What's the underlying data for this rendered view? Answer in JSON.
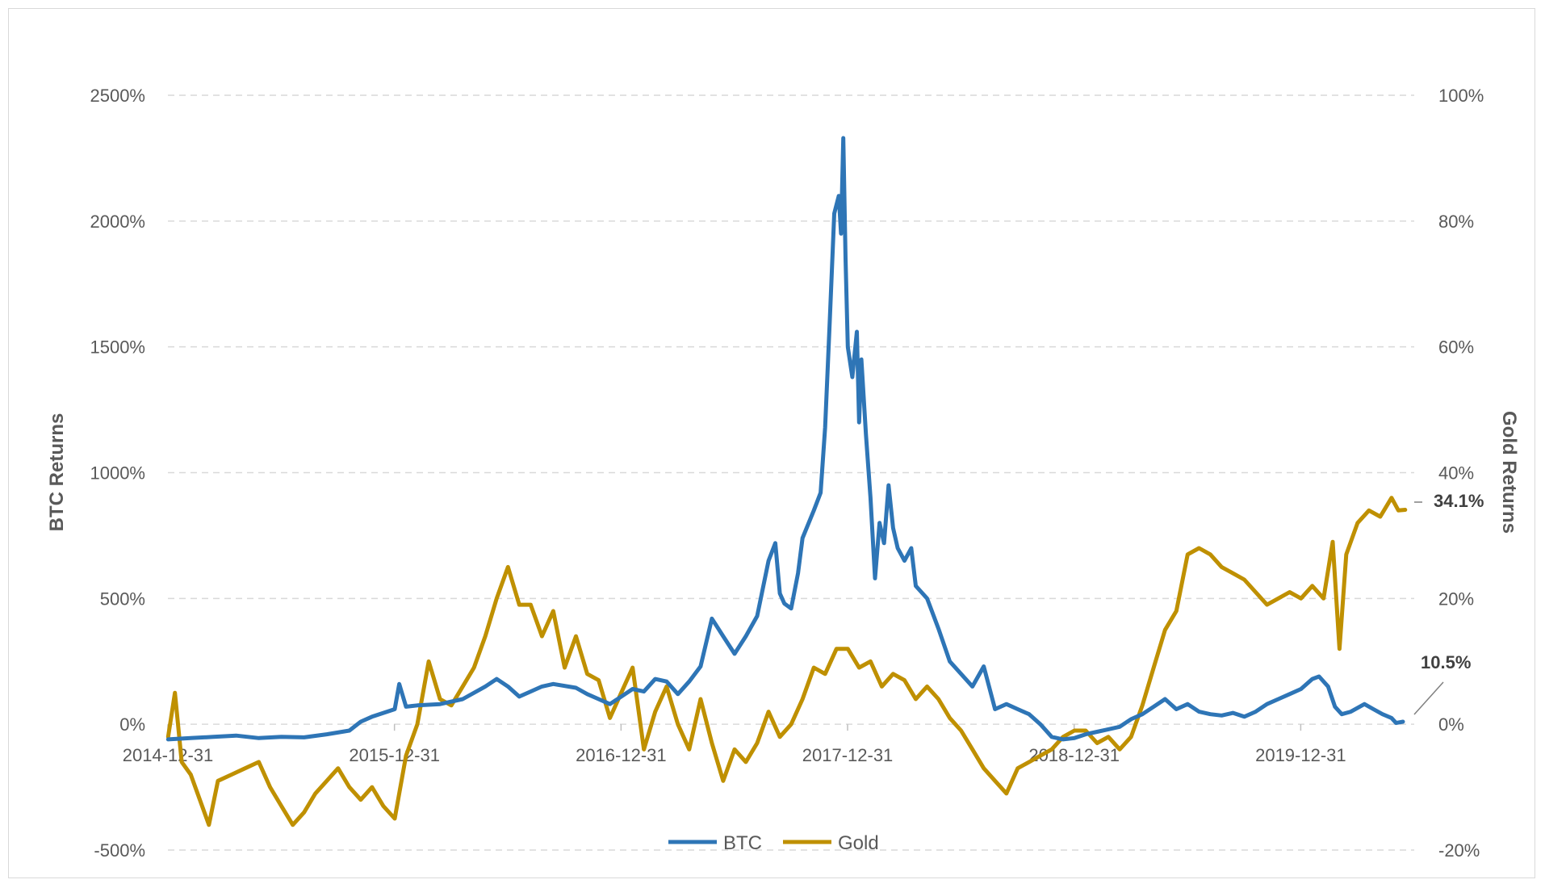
{
  "chart_data": {
    "type": "line",
    "title": "",
    "xlabel": "",
    "y_left": {
      "label": "BTC Returns",
      "ticks": [
        "2500%",
        "2000%",
        "1500%",
        "1000%",
        "500%",
        "0%",
        "-500%"
      ],
      "tick_values": [
        2500,
        2000,
        1500,
        1000,
        500,
        0,
        -500
      ],
      "range": [
        -500,
        2500
      ]
    },
    "y_right": {
      "label": "Gold Returns",
      "ticks": [
        "100%",
        "80%",
        "60%",
        "40%",
        "20%",
        "0%",
        "-20%"
      ],
      "tick_values": [
        100,
        80,
        60,
        40,
        20,
        0,
        -20
      ],
      "range": [
        -20,
        100
      ]
    },
    "x_ticks": [
      {
        "label": "2014-12-31",
        "value": 2014.999
      },
      {
        "label": "2015-12-31",
        "value": 2015.999
      },
      {
        "label": "2016-12-31",
        "value": 2016.999
      },
      {
        "label": "2017-12-31",
        "value": 2017.999
      },
      {
        "label": "2018-12-31",
        "value": 2018.999
      },
      {
        "label": "2019-12-31",
        "value": 2019.999
      }
    ],
    "x_range": [
      2014.999,
      2020.5
    ],
    "grid": "horizontal dashed",
    "legend_position": "bottom",
    "series": [
      {
        "name": "BTC",
        "axis": "left",
        "color": "#2e75b6",
        "points": [
          [
            2015.0,
            -60
          ],
          [
            2015.1,
            -55
          ],
          [
            2015.2,
            -50
          ],
          [
            2015.3,
            -45
          ],
          [
            2015.4,
            -55
          ],
          [
            2015.5,
            -50
          ],
          [
            2015.6,
            -52
          ],
          [
            2015.7,
            -40
          ],
          [
            2015.8,
            -25
          ],
          [
            2015.85,
            10
          ],
          [
            2015.9,
            30
          ],
          [
            2016.0,
            60
          ],
          [
            2016.02,
            160
          ],
          [
            2016.05,
            70
          ],
          [
            2016.1,
            75
          ],
          [
            2016.2,
            80
          ],
          [
            2016.3,
            100
          ],
          [
            2016.4,
            150
          ],
          [
            2016.45,
            180
          ],
          [
            2016.5,
            150
          ],
          [
            2016.55,
            110
          ],
          [
            2016.6,
            130
          ],
          [
            2016.65,
            150
          ],
          [
            2016.7,
            160
          ],
          [
            2016.8,
            145
          ],
          [
            2016.85,
            120
          ],
          [
            2016.9,
            100
          ],
          [
            2016.95,
            80
          ],
          [
            2017.0,
            110
          ],
          [
            2017.05,
            140
          ],
          [
            2017.1,
            130
          ],
          [
            2017.15,
            180
          ],
          [
            2017.2,
            170
          ],
          [
            2017.25,
            120
          ],
          [
            2017.3,
            170
          ],
          [
            2017.35,
            230
          ],
          [
            2017.4,
            420
          ],
          [
            2017.45,
            350
          ],
          [
            2017.5,
            280
          ],
          [
            2017.55,
            350
          ],
          [
            2017.6,
            430
          ],
          [
            2017.65,
            650
          ],
          [
            2017.68,
            720
          ],
          [
            2017.7,
            520
          ],
          [
            2017.72,
            480
          ],
          [
            2017.75,
            460
          ],
          [
            2017.78,
            600
          ],
          [
            2017.8,
            740
          ],
          [
            2017.85,
            850
          ],
          [
            2017.88,
            920
          ],
          [
            2017.9,
            1180
          ],
          [
            2017.92,
            1600
          ],
          [
            2017.94,
            2030
          ],
          [
            2017.96,
            2100
          ],
          [
            2017.97,
            1950
          ],
          [
            2017.98,
            2330
          ],
          [
            2017.99,
            1850
          ],
          [
            2018.0,
            1500
          ],
          [
            2018.02,
            1380
          ],
          [
            2018.04,
            1560
          ],
          [
            2018.05,
            1200
          ],
          [
            2018.06,
            1450
          ],
          [
            2018.08,
            1150
          ],
          [
            2018.1,
            900
          ],
          [
            2018.12,
            580
          ],
          [
            2018.14,
            800
          ],
          [
            2018.16,
            720
          ],
          [
            2018.18,
            950
          ],
          [
            2018.2,
            780
          ],
          [
            2018.22,
            700
          ],
          [
            2018.25,
            650
          ],
          [
            2018.28,
            700
          ],
          [
            2018.3,
            550
          ],
          [
            2018.35,
            500
          ],
          [
            2018.4,
            380
          ],
          [
            2018.45,
            250
          ],
          [
            2018.5,
            200
          ],
          [
            2018.55,
            150
          ],
          [
            2018.6,
            230
          ],
          [
            2018.65,
            60
          ],
          [
            2018.7,
            80
          ],
          [
            2018.75,
            60
          ],
          [
            2018.8,
            40
          ],
          [
            2018.85,
            0
          ],
          [
            2018.9,
            -50
          ],
          [
            2018.95,
            -60
          ],
          [
            2019.0,
            -55
          ],
          [
            2019.05,
            -40
          ],
          [
            2019.1,
            -30
          ],
          [
            2019.15,
            -20
          ],
          [
            2019.2,
            -10
          ],
          [
            2019.25,
            20
          ],
          [
            2019.3,
            40
          ],
          [
            2019.35,
            70
          ],
          [
            2019.4,
            100
          ],
          [
            2019.45,
            60
          ],
          [
            2019.5,
            80
          ],
          [
            2019.55,
            50
          ],
          [
            2019.6,
            40
          ],
          [
            2019.65,
            35
          ],
          [
            2019.7,
            45
          ],
          [
            2019.75,
            30
          ],
          [
            2019.8,
            50
          ],
          [
            2019.85,
            80
          ],
          [
            2019.9,
            100
          ],
          [
            2019.95,
            120
          ],
          [
            2020.0,
            140
          ],
          [
            2020.05,
            180
          ],
          [
            2020.08,
            190
          ],
          [
            2020.12,
            150
          ],
          [
            2020.15,
            70
          ],
          [
            2020.18,
            40
          ],
          [
            2020.22,
            50
          ],
          [
            2020.28,
            80
          ],
          [
            2020.32,
            60
          ],
          [
            2020.36,
            40
          ],
          [
            2020.4,
            25
          ],
          [
            2020.42,
            5
          ],
          [
            2020.45,
            10
          ]
        ]
      },
      {
        "name": "Gold",
        "axis": "right",
        "color": "#bf9000",
        "points": [
          [
            2015.0,
            -2
          ],
          [
            2015.03,
            5
          ],
          [
            2015.06,
            -6
          ],
          [
            2015.1,
            -8
          ],
          [
            2015.15,
            -13
          ],
          [
            2015.18,
            -16
          ],
          [
            2015.22,
            -9
          ],
          [
            2015.28,
            -8
          ],
          [
            2015.34,
            -7
          ],
          [
            2015.4,
            -6
          ],
          [
            2015.45,
            -10
          ],
          [
            2015.5,
            -13
          ],
          [
            2015.55,
            -16
          ],
          [
            2015.6,
            -14
          ],
          [
            2015.65,
            -11
          ],
          [
            2015.7,
            -9
          ],
          [
            2015.75,
            -7
          ],
          [
            2015.8,
            -10
          ],
          [
            2015.85,
            -12
          ],
          [
            2015.9,
            -10
          ],
          [
            2015.95,
            -13
          ],
          [
            2016.0,
            -15
          ],
          [
            2016.05,
            -5
          ],
          [
            2016.1,
            0
          ],
          [
            2016.15,
            10
          ],
          [
            2016.2,
            4
          ],
          [
            2016.25,
            3
          ],
          [
            2016.3,
            6
          ],
          [
            2016.35,
            9
          ],
          [
            2016.4,
            14
          ],
          [
            2016.45,
            20
          ],
          [
            2016.5,
            25
          ],
          [
            2016.55,
            19
          ],
          [
            2016.6,
            19
          ],
          [
            2016.65,
            14
          ],
          [
            2016.7,
            18
          ],
          [
            2016.75,
            9
          ],
          [
            2016.8,
            14
          ],
          [
            2016.85,
            8
          ],
          [
            2016.9,
            7
          ],
          [
            2016.95,
            1
          ],
          [
            2017.0,
            5
          ],
          [
            2017.05,
            9
          ],
          [
            2017.1,
            -4
          ],
          [
            2017.15,
            2
          ],
          [
            2017.2,
            6
          ],
          [
            2017.25,
            0
          ],
          [
            2017.3,
            -4
          ],
          [
            2017.35,
            4
          ],
          [
            2017.4,
            -3
          ],
          [
            2017.45,
            -9
          ],
          [
            2017.5,
            -4
          ],
          [
            2017.55,
            -6
          ],
          [
            2017.6,
            -3
          ],
          [
            2017.65,
            2
          ],
          [
            2017.7,
            -2
          ],
          [
            2017.75,
            0
          ],
          [
            2017.8,
            4
          ],
          [
            2017.85,
            9
          ],
          [
            2017.9,
            8
          ],
          [
            2017.95,
            12
          ],
          [
            2018.0,
            12
          ],
          [
            2018.05,
            9
          ],
          [
            2018.1,
            10
          ],
          [
            2018.15,
            6
          ],
          [
            2018.2,
            8
          ],
          [
            2018.25,
            7
          ],
          [
            2018.3,
            4
          ],
          [
            2018.35,
            6
          ],
          [
            2018.4,
            4
          ],
          [
            2018.45,
            1
          ],
          [
            2018.5,
            -1
          ],
          [
            2018.55,
            -4
          ],
          [
            2018.6,
            -7
          ],
          [
            2018.65,
            -9
          ],
          [
            2018.7,
            -11
          ],
          [
            2018.75,
            -7
          ],
          [
            2018.8,
            -6
          ],
          [
            2018.85,
            -5
          ],
          [
            2018.9,
            -4
          ],
          [
            2018.95,
            -2
          ],
          [
            2019.0,
            -1
          ],
          [
            2019.05,
            -1
          ],
          [
            2019.1,
            -3
          ],
          [
            2019.15,
            -2
          ],
          [
            2019.2,
            -4
          ],
          [
            2019.25,
            -2
          ],
          [
            2019.3,
            3
          ],
          [
            2019.35,
            9
          ],
          [
            2019.4,
            15
          ],
          [
            2019.45,
            18
          ],
          [
            2019.5,
            27
          ],
          [
            2019.55,
            28
          ],
          [
            2019.6,
            27
          ],
          [
            2019.65,
            25
          ],
          [
            2019.7,
            24
          ],
          [
            2019.75,
            23
          ],
          [
            2019.8,
            21
          ],
          [
            2019.85,
            19
          ],
          [
            2019.9,
            20
          ],
          [
            2019.95,
            21
          ],
          [
            2020.0,
            20
          ],
          [
            2020.05,
            22
          ],
          [
            2020.1,
            20
          ],
          [
            2020.14,
            29
          ],
          [
            2020.17,
            12
          ],
          [
            2020.2,
            27
          ],
          [
            2020.25,
            32
          ],
          [
            2020.3,
            34
          ],
          [
            2020.35,
            33
          ],
          [
            2020.4,
            36
          ],
          [
            2020.43,
            34
          ],
          [
            2020.46,
            34.1
          ]
        ]
      }
    ],
    "annotations": [
      {
        "text": "34.1%",
        "series": "Gold"
      },
      {
        "text": "10.5%",
        "series": "BTC"
      }
    ]
  }
}
